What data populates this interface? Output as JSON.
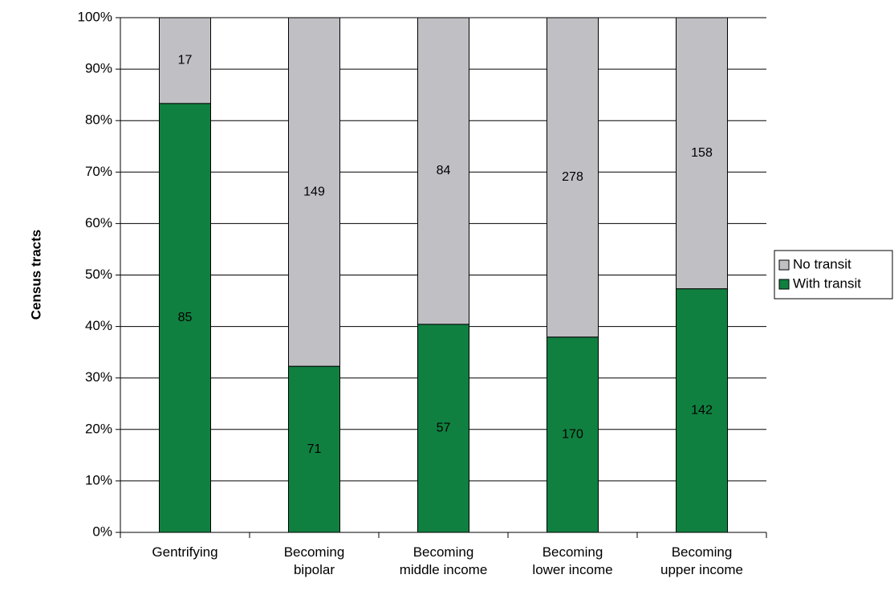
{
  "chart_data": {
    "type": "bar",
    "stacking": "percent",
    "y_label": "Census tracts",
    "categories": [
      "Gentrifying",
      "Becoming\nbipolar",
      "Becoming\nmiddle income",
      "Becoming\nlower income",
      "Becoming\nupper income"
    ],
    "series": [
      {
        "name": "With transit",
        "color": "#108040",
        "values": [
          85,
          71,
          57,
          170,
          142
        ]
      },
      {
        "name": "No transit",
        "color": "#bfbfc4",
        "values": [
          17,
          149,
          84,
          278,
          158
        ]
      }
    ],
    "ylim": [
      0,
      100
    ],
    "yticks": [
      {
        "value": 0,
        "label": "0%"
      },
      {
        "value": 10,
        "label": "10%"
      },
      {
        "value": 20,
        "label": "20%"
      },
      {
        "value": 30,
        "label": "30%"
      },
      {
        "value": 40,
        "label": "40%"
      },
      {
        "value": 50,
        "label": "50%"
      },
      {
        "value": 60,
        "label": "60%"
      },
      {
        "value": 70,
        "label": "70%"
      },
      {
        "value": 80,
        "label": "80%"
      },
      {
        "value": 90,
        "label": "90%"
      },
      {
        "value": 100,
        "label": "100%"
      }
    ],
    "grid": true,
    "legend": "right"
  }
}
